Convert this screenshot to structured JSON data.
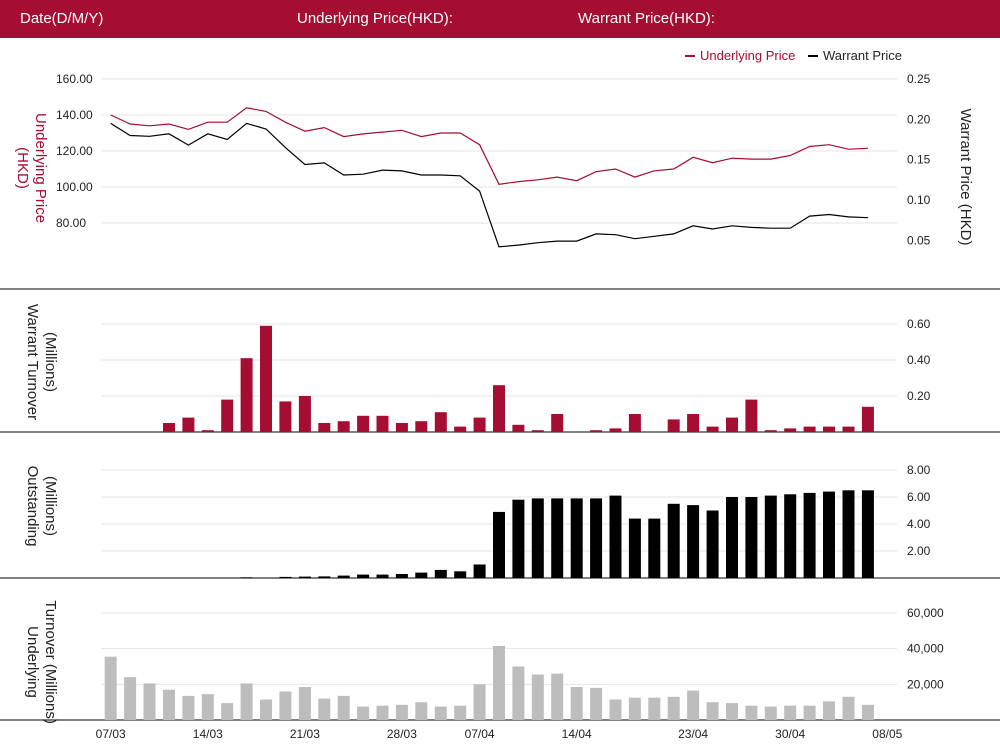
{
  "header": {
    "date_label": "Date(D/M/Y)",
    "underlying_label": "Underlying Price(HKD):",
    "warrant_label": "Warrant Price(HKD):"
  },
  "colors": {
    "accent": "#a50d32",
    "warrant": "#000000",
    "underlying_turnover": "#bdbdbd",
    "grid": "#e6e6e6"
  },
  "chart_data": {
    "type": "line",
    "x": [
      "07/03",
      "08/03",
      "11/03",
      "12/03",
      "13/03",
      "14/03",
      "15/03",
      "18/03",
      "19/03",
      "20/03",
      "21/03",
      "22/03",
      "25/03",
      "26/03",
      "27/03",
      "28/03",
      "01/04",
      "02/04",
      "03/04",
      "07/04",
      "08/04",
      "09/04",
      "10/04",
      "11/04",
      "14/04",
      "15/04",
      "16/04",
      "17/04",
      "18/04",
      "22/04",
      "23/04",
      "24/04",
      "25/04",
      "28/04",
      "29/04",
      "30/04",
      "02/05",
      "05/05",
      "06/05",
      "07/05",
      "08/05"
    ],
    "x_tick_labels": [
      "07/03",
      "14/03",
      "21/03",
      "28/03",
      "07/04",
      "14/04",
      "23/04",
      "30/04",
      "08/05"
    ],
    "legend": {
      "placement": "top-right",
      "underlying": "Underlying Price",
      "warrant": "Warrant Price"
    },
    "price_panel": {
      "left_axis_label": "Underlying Price (HKD)",
      "right_axis_label": "Warrant  Price (HKD)",
      "left_ticks": [
        "160.00",
        "140.00",
        "120.00",
        "100.00",
        "80.00"
      ],
      "right_ticks": [
        "0.25",
        "0.20",
        "0.15",
        "0.10",
        "0.05"
      ],
      "left_range": [
        66.7,
        160
      ],
      "right_range": [
        0.0417,
        0.25
      ],
      "underlying_price": [
        140,
        135,
        134,
        135,
        132,
        136,
        136,
        144,
        142,
        136,
        131,
        133,
        128,
        129.5,
        130.5,
        131.5,
        128,
        130,
        130,
        123.5,
        101.5,
        103,
        104,
        105.5,
        103.5,
        108.5,
        110,
        105.5,
        109,
        110,
        116.5,
        113.5,
        116,
        115.5,
        115.5,
        117.5,
        122.5,
        123.5,
        121,
        121.5,
        null
      ],
      "warrant_price": [
        0.195,
        0.18,
        0.179,
        0.182,
        0.168,
        0.182,
        0.175,
        0.195,
        0.188,
        0.165,
        0.144,
        0.146,
        0.131,
        0.132,
        0.137,
        0.136,
        0.131,
        0.131,
        0.13,
        0.111,
        0.042,
        0.044,
        0.047,
        0.049,
        0.049,
        0.058,
        0.057,
        0.052,
        0.055,
        0.058,
        0.068,
        0.064,
        0.068,
        0.066,
        0.065,
        0.065,
        0.08,
        0.082,
        0.079,
        0.078,
        null
      ]
    },
    "warrant_turnover_panel": {
      "ylabel": "Warrant  Turnover (Millions)",
      "ticks": [
        "0.60",
        "0.40",
        "0.20"
      ],
      "range": [
        0,
        0.6
      ],
      "values": [
        0,
        0,
        0,
        0.05,
        0.08,
        0.01,
        0.18,
        0.41,
        0.59,
        0.17,
        0.2,
        0.05,
        0.06,
        0.09,
        0.09,
        0.05,
        0.06,
        0.11,
        0.03,
        0.08,
        0.26,
        0.04,
        0.01,
        0.1,
        0,
        0.01,
        0.02,
        0.1,
        0,
        0.07,
        0.1,
        0.03,
        0.08,
        0.18,
        0.01,
        0.02,
        0.03,
        0.03,
        0.03,
        0.14,
        null
      ]
    },
    "outstanding_panel": {
      "ylabel": "Outstanding (Millions)",
      "ticks": [
        "8.00",
        "6.00",
        "4.00",
        "2.00"
      ],
      "range": [
        0,
        8
      ],
      "values": [
        0,
        0,
        0,
        0,
        0,
        0,
        0,
        0.05,
        0,
        0.08,
        0.1,
        0.12,
        0.18,
        0.25,
        0.25,
        0.3,
        0.4,
        0.6,
        0.5,
        1,
        4.9,
        5.8,
        5.9,
        5.9,
        5.9,
        5.9,
        6.1,
        4.4,
        4.4,
        5.5,
        5.4,
        5,
        6,
        6,
        6.1,
        6.2,
        6.3,
        6.4,
        6.5,
        6.5,
        null
      ]
    },
    "underlying_turnover_panel": {
      "ylabel": "Underlying Turnover (Millions)",
      "ticks": [
        "60,000",
        "40,000",
        "20,000"
      ],
      "range": [
        0,
        60000
      ],
      "values": [
        35500,
        24000,
        20500,
        17000,
        13500,
        14500,
        9500,
        20500,
        11500,
        16000,
        18500,
        12000,
        13500,
        7500,
        8000,
        8500,
        10000,
        7500,
        8000,
        20000,
        41500,
        30000,
        25500,
        26000,
        18500,
        18000,
        11500,
        12500,
        12500,
        13000,
        16500,
        10000,
        9500,
        8000,
        7500,
        8000,
        8000,
        10500,
        13000,
        8500,
        null
      ]
    }
  }
}
